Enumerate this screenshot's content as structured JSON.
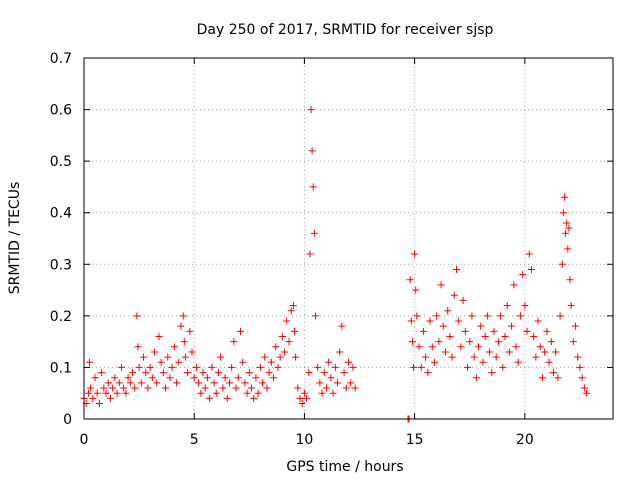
{
  "chart_data": {
    "type": "scatter",
    "title": "Day 250 of 2017, SRMTID for receiver sjsp",
    "xlabel": "GPS time / hours",
    "ylabel": "SRMTID / TECUs",
    "xlim": [
      0,
      24
    ],
    "ylim": [
      0,
      0.7
    ],
    "xticks": [
      0,
      5,
      10,
      15,
      20
    ],
    "xtick_labels": [
      "0",
      "5",
      "10",
      "15",
      "20"
    ],
    "yticks": [
      0,
      0.1,
      0.2,
      0.3,
      0.4,
      0.5,
      0.6,
      0.7
    ],
    "ytick_labels": [
      "0",
      "0.1",
      "0.2",
      "0.3",
      "0.4",
      "0.5",
      "0.6",
      "0.7"
    ],
    "grid": true,
    "marker": "plus",
    "color": "#ff0000",
    "series": [
      {
        "name": "SRMTID",
        "points": [
          [
            0.0,
            0.04
          ],
          [
            0.1,
            0.03
          ],
          [
            0.2,
            0.05
          ],
          [
            0.25,
            0.11
          ],
          [
            0.3,
            0.06
          ],
          [
            0.4,
            0.04
          ],
          [
            0.5,
            0.08
          ],
          [
            0.6,
            0.05
          ],
          [
            0.7,
            0.03
          ],
          [
            0.8,
            0.09
          ],
          [
            0.9,
            0.06
          ],
          [
            1.0,
            0.05
          ],
          [
            1.1,
            0.07
          ],
          [
            1.2,
            0.04
          ],
          [
            1.3,
            0.06
          ],
          [
            1.4,
            0.08
          ],
          [
            1.5,
            0.05
          ],
          [
            1.6,
            0.07
          ],
          [
            1.7,
            0.1
          ],
          [
            1.8,
            0.06
          ],
          [
            1.9,
            0.05
          ],
          [
            2.0,
            0.08
          ],
          [
            2.1,
            0.07
          ],
          [
            2.2,
            0.09
          ],
          [
            2.3,
            0.06
          ],
          [
            2.4,
            0.2
          ],
          [
            2.45,
            0.14
          ],
          [
            2.5,
            0.1
          ],
          [
            2.6,
            0.07
          ],
          [
            2.7,
            0.12
          ],
          [
            2.8,
            0.09
          ],
          [
            2.9,
            0.06
          ],
          [
            3.0,
            0.1
          ],
          [
            3.1,
            0.08
          ],
          [
            3.2,
            0.13
          ],
          [
            3.3,
            0.07
          ],
          [
            3.4,
            0.16
          ],
          [
            3.5,
            0.11
          ],
          [
            3.6,
            0.09
          ],
          [
            3.7,
            0.06
          ],
          [
            3.8,
            0.12
          ],
          [
            3.9,
            0.08
          ],
          [
            4.0,
            0.1
          ],
          [
            4.1,
            0.14
          ],
          [
            4.2,
            0.07
          ],
          [
            4.3,
            0.11
          ],
          [
            4.4,
            0.18
          ],
          [
            4.5,
            0.2
          ],
          [
            4.55,
            0.15
          ],
          [
            4.6,
            0.12
          ],
          [
            4.7,
            0.09
          ],
          [
            4.8,
            0.17
          ],
          [
            4.9,
            0.13
          ],
          [
            5.0,
            0.08
          ],
          [
            5.1,
            0.1
          ],
          [
            5.2,
            0.07
          ],
          [
            5.3,
            0.05
          ],
          [
            5.4,
            0.09
          ],
          [
            5.5,
            0.06
          ],
          [
            5.6,
            0.08
          ],
          [
            5.7,
            0.04
          ],
          [
            5.8,
            0.1
          ],
          [
            5.9,
            0.07
          ],
          [
            6.0,
            0.05
          ],
          [
            6.1,
            0.09
          ],
          [
            6.2,
            0.12
          ],
          [
            6.3,
            0.06
          ],
          [
            6.4,
            0.08
          ],
          [
            6.5,
            0.04
          ],
          [
            6.6,
            0.07
          ],
          [
            6.7,
            0.1
          ],
          [
            6.8,
            0.15
          ],
          [
            6.9,
            0.06
          ],
          [
            7.0,
            0.08
          ],
          [
            7.1,
            0.17
          ],
          [
            7.2,
            0.11
          ],
          [
            7.3,
            0.07
          ],
          [
            7.4,
            0.05
          ],
          [
            7.5,
            0.09
          ],
          [
            7.6,
            0.06
          ],
          [
            7.7,
            0.04
          ],
          [
            7.8,
            0.08
          ],
          [
            7.9,
            0.05
          ],
          [
            8.0,
            0.1
          ],
          [
            8.1,
            0.07
          ],
          [
            8.2,
            0.12
          ],
          [
            8.3,
            0.06
          ],
          [
            8.4,
            0.09
          ],
          [
            8.5,
            0.11
          ],
          [
            8.6,
            0.08
          ],
          [
            8.7,
            0.14
          ],
          [
            8.8,
            0.1
          ],
          [
            8.9,
            0.12
          ],
          [
            9.0,
            0.16
          ],
          [
            9.1,
            0.13
          ],
          [
            9.2,
            0.19
          ],
          [
            9.3,
            0.15
          ],
          [
            9.4,
            0.21
          ],
          [
            9.5,
            0.22
          ],
          [
            9.55,
            0.17
          ],
          [
            9.6,
            0.12
          ],
          [
            9.7,
            0.06
          ],
          [
            9.8,
            0.04
          ],
          [
            9.9,
            0.03
          ],
          [
            10.0,
            0.05
          ],
          [
            10.1,
            0.04
          ],
          [
            10.2,
            0.09
          ],
          [
            10.25,
            0.32
          ],
          [
            10.3,
            0.6
          ],
          [
            10.35,
            0.52
          ],
          [
            10.4,
            0.45
          ],
          [
            10.45,
            0.36
          ],
          [
            10.5,
            0.2
          ],
          [
            10.6,
            0.1
          ],
          [
            10.7,
            0.07
          ],
          [
            10.8,
            0.05
          ],
          [
            10.9,
            0.09
          ],
          [
            11.0,
            0.06
          ],
          [
            11.1,
            0.11
          ],
          [
            11.2,
            0.08
          ],
          [
            11.3,
            0.05
          ],
          [
            11.4,
            0.1
          ],
          [
            11.5,
            0.07
          ],
          [
            11.6,
            0.13
          ],
          [
            11.7,
            0.18
          ],
          [
            11.8,
            0.09
          ],
          [
            11.9,
            0.06
          ],
          [
            12.0,
            0.11
          ],
          [
            12.1,
            0.07
          ],
          [
            12.2,
            0.1
          ],
          [
            12.3,
            0.06
          ],
          [
            14.7,
            0.0
          ],
          [
            14.75,
            0.0
          ],
          [
            14.8,
            0.27
          ],
          [
            14.85,
            0.19
          ],
          [
            14.9,
            0.15
          ],
          [
            14.95,
            0.1
          ],
          [
            15.0,
            0.32
          ],
          [
            15.05,
            0.25
          ],
          [
            15.1,
            0.2
          ],
          [
            15.2,
            0.14
          ],
          [
            15.3,
            0.1
          ],
          [
            15.4,
            0.17
          ],
          [
            15.5,
            0.12
          ],
          [
            15.6,
            0.09
          ],
          [
            15.7,
            0.19
          ],
          [
            15.8,
            0.14
          ],
          [
            15.9,
            0.11
          ],
          [
            16.0,
            0.2
          ],
          [
            16.1,
            0.15
          ],
          [
            16.2,
            0.26
          ],
          [
            16.3,
            0.18
          ],
          [
            16.4,
            0.13
          ],
          [
            16.5,
            0.21
          ],
          [
            16.6,
            0.16
          ],
          [
            16.7,
            0.12
          ],
          [
            16.8,
            0.24
          ],
          [
            16.9,
            0.29
          ],
          [
            17.0,
            0.19
          ],
          [
            17.1,
            0.14
          ],
          [
            17.2,
            0.23
          ],
          [
            17.3,
            0.17
          ],
          [
            17.4,
            0.1
          ],
          [
            17.5,
            0.15
          ],
          [
            17.6,
            0.2
          ],
          [
            17.7,
            0.12
          ],
          [
            17.8,
            0.08
          ],
          [
            17.9,
            0.14
          ],
          [
            18.0,
            0.18
          ],
          [
            18.1,
            0.11
          ],
          [
            18.2,
            0.16
          ],
          [
            18.3,
            0.2
          ],
          [
            18.4,
            0.13
          ],
          [
            18.5,
            0.09
          ],
          [
            18.6,
            0.17
          ],
          [
            18.7,
            0.12
          ],
          [
            18.8,
            0.15
          ],
          [
            18.9,
            0.2
          ],
          [
            19.0,
            0.1
          ],
          [
            19.1,
            0.16
          ],
          [
            19.2,
            0.22
          ],
          [
            19.3,
            0.13
          ],
          [
            19.4,
            0.18
          ],
          [
            19.5,
            0.26
          ],
          [
            19.6,
            0.14
          ],
          [
            19.7,
            0.11
          ],
          [
            19.8,
            0.2
          ],
          [
            19.9,
            0.28
          ],
          [
            20.0,
            0.22
          ],
          [
            20.1,
            0.17
          ],
          [
            20.2,
            0.32
          ],
          [
            20.3,
            0.29
          ],
          [
            20.4,
            0.16
          ],
          [
            20.5,
            0.12
          ],
          [
            20.6,
            0.19
          ],
          [
            20.7,
            0.14
          ],
          [
            20.8,
            0.08
          ],
          [
            20.9,
            0.13
          ],
          [
            21.0,
            0.17
          ],
          [
            21.1,
            0.11
          ],
          [
            21.2,
            0.15
          ],
          [
            21.3,
            0.09
          ],
          [
            21.4,
            0.13
          ],
          [
            21.5,
            0.08
          ],
          [
            21.6,
            0.2
          ],
          [
            21.7,
            0.3
          ],
          [
            21.75,
            0.4
          ],
          [
            21.8,
            0.43
          ],
          [
            21.85,
            0.36
          ],
          [
            21.9,
            0.38
          ],
          [
            21.95,
            0.33
          ],
          [
            22.0,
            0.37
          ],
          [
            22.05,
            0.27
          ],
          [
            22.1,
            0.22
          ],
          [
            22.2,
            0.15
          ],
          [
            22.3,
            0.18
          ],
          [
            22.4,
            0.12
          ],
          [
            22.5,
            0.1
          ],
          [
            22.6,
            0.08
          ],
          [
            22.7,
            0.06
          ],
          [
            22.8,
            0.05
          ]
        ]
      }
    ]
  }
}
